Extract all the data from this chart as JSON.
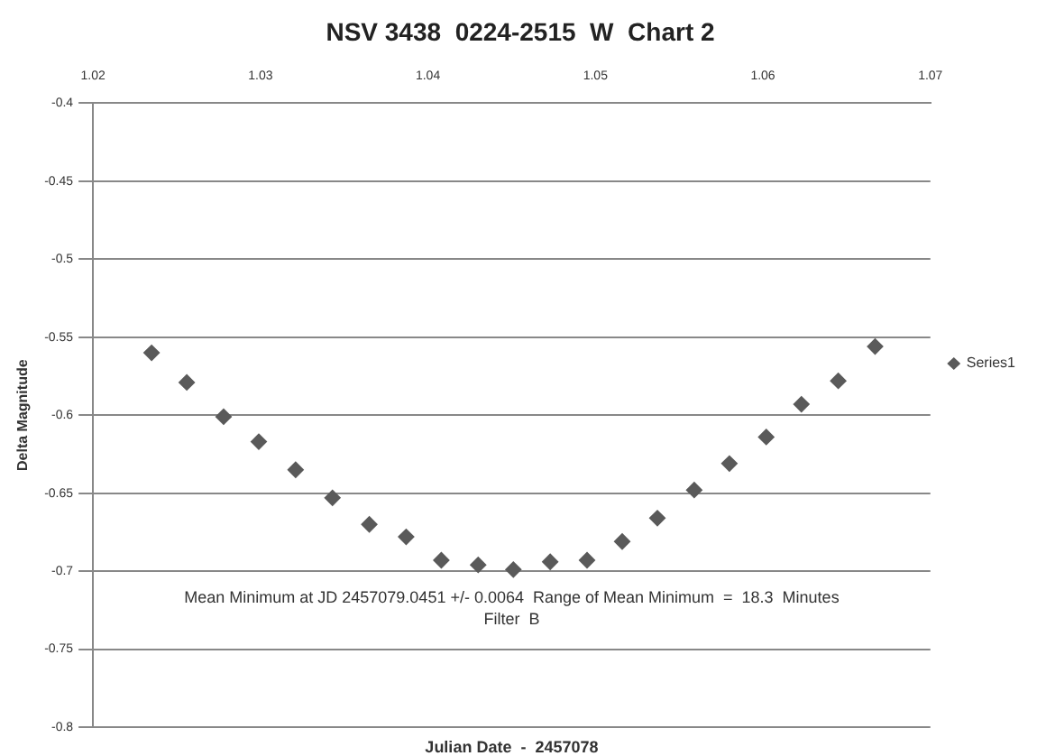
{
  "chart_data": {
    "type": "scatter",
    "title": "NSV 3438  0224-2515  W  Chart 2",
    "xlabel": "Julian Date  -  2457078",
    "ylabel": "Delta Magnitude",
    "x": [
      1.0235,
      1.0256,
      1.0278,
      1.0299,
      1.0321,
      1.0343,
      1.0365,
      1.0387,
      1.0408,
      1.043,
      1.0451,
      1.0473,
      1.0495,
      1.0516,
      1.0537,
      1.0559,
      1.058,
      1.0602,
      1.0623,
      1.0645,
      1.0667
    ],
    "series": [
      {
        "name": "Series1",
        "color": "#5a5a5a",
        "values": [
          -0.56,
          -0.579,
          -0.601,
          -0.617,
          -0.635,
          -0.653,
          -0.67,
          -0.678,
          -0.693,
          -0.696,
          -0.699,
          -0.694,
          -0.693,
          -0.681,
          -0.666,
          -0.648,
          -0.631,
          -0.614,
          -0.593,
          -0.578,
          -0.556
        ]
      }
    ],
    "xlim": [
      1.02,
      1.07
    ],
    "xticks": [
      1.02,
      1.03,
      1.04,
      1.05,
      1.06,
      1.07
    ],
    "ylim": [
      -0.8,
      -0.4
    ],
    "yticks": [
      -0.8,
      -0.75,
      -0.7,
      -0.65,
      -0.6,
      -0.55,
      -0.5,
      -0.45,
      -0.4
    ],
    "annotations": [
      "Mean Minimum at JD 2457079.0451 +/- 0.0064  Range of Mean Minimum  =  18.3  Minutes",
      "Filter  B"
    ],
    "grid": "y",
    "legend": "right",
    "marker": "diamond"
  }
}
